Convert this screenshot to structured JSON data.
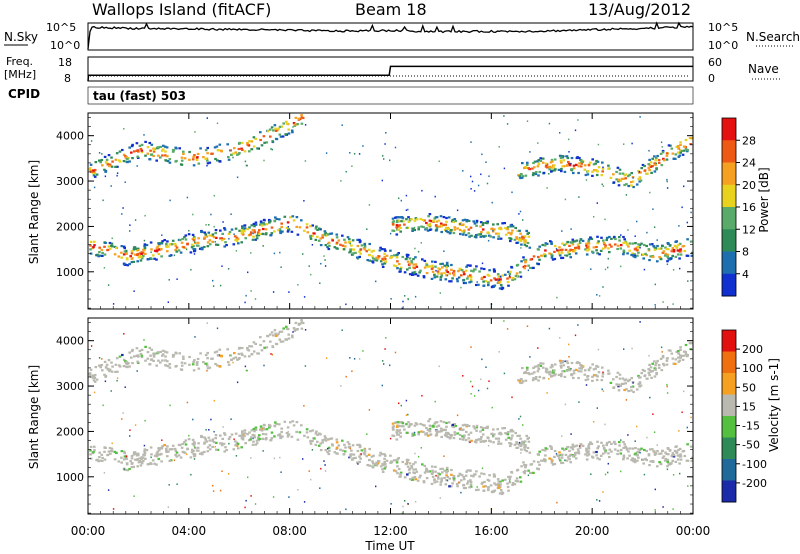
{
  "header": {
    "station": "Wallops Island (fitACF)",
    "beam": "Beam 18",
    "date": "13/Aug/2012"
  },
  "top_panels": {
    "nsky_label": "N.Sky",
    "nsearch_label": "N.Search",
    "noise_ticks": [
      "10^5",
      "10^0"
    ],
    "freq_label": "Freq.",
    "freq_unit": "[MHz]",
    "freq_ticks": [
      "18",
      "8"
    ],
    "nave_label": "Nave",
    "nave_ticks": [
      "60",
      "0"
    ],
    "cpid_label": "CPID",
    "cpid_value": "tau (fast) 503"
  },
  "xaxis": {
    "label": "Time UT",
    "ticks": [
      "00:00",
      "04:00",
      "08:00",
      "12:00",
      "16:00",
      "20:00",
      "00:00"
    ]
  },
  "power_panel": {
    "ylabel": "Slant Range [km]",
    "yticks": [
      "1000",
      "2000",
      "3000",
      "4000"
    ],
    "cbar_label": "Power [dB]",
    "cbar_ticks": [
      "4",
      "8",
      "12",
      "16",
      "20",
      "24",
      "28"
    ]
  },
  "velocity_panel": {
    "ylabel": "Slant Range [km]",
    "yticks": [
      "1000",
      "2000",
      "3000",
      "4000"
    ],
    "cbar_label": "Velocity [m s-1]",
    "cbar_ticks": [
      "200",
      "100",
      "50",
      "15",
      "-15",
      "-50",
      "-100",
      "-200"
    ]
  },
  "chart_data": [
    {
      "type": "heatmap",
      "quantity": "power",
      "units": "dB",
      "x_range_hours": [
        0,
        24
      ],
      "y_range_km": [
        180,
        4500
      ],
      "color_range": [
        0,
        30
      ],
      "colorscale": [
        "#1030d0",
        "#1d6fb0",
        "#2e8b57",
        "#5aaa6a",
        "#e8d21e",
        "#f5a020",
        "#ee5a16",
        "#e51010"
      ],
      "echo_bands": [
        {
          "x": [
            0.0,
            1.5,
            3.0,
            4.5,
            6.0,
            7.0,
            8.0,
            9.5,
            11.0,
            12.0,
            13.5,
            15.0,
            16.5,
            18.0,
            19.5,
            21.0,
            22.5,
            24.0
          ],
          "y": [
            1600,
            1350,
            1500,
            1700,
            1800,
            1950,
            2100,
            1700,
            1450,
            1250,
            1050,
            950,
            800,
            1450,
            1550,
            1600,
            1400,
            1550
          ]
        },
        {
          "x": [
            0.0,
            2.0,
            4.0,
            6.0,
            7.5,
            8.5
          ],
          "y": [
            3200,
            3700,
            3500,
            3700,
            4100,
            4400
          ]
        },
        {
          "x": [
            12.0,
            13.5,
            15.0,
            16.5,
            17.5
          ],
          "y": [
            2000,
            2100,
            1950,
            1900,
            1700
          ]
        },
        {
          "x": [
            17.0,
            18.5,
            20.0,
            21.5,
            23.0,
            24.0
          ],
          "y": [
            3200,
            3400,
            3300,
            3000,
            3600,
            3900
          ]
        }
      ]
    },
    {
      "type": "heatmap",
      "quantity": "velocity",
      "units": "m s-1",
      "x_range_hours": [
        0,
        24
      ],
      "y_range_km": [
        180,
        4500
      ],
      "color_levels": [
        200,
        100,
        50,
        15,
        -15,
        -50,
        -100,
        -200
      ],
      "colorscale": [
        "#1a2aa8",
        "#1f6a9a",
        "#2e8b57",
        "#55c040",
        "#b9b9b0",
        "#f5a020",
        "#f07010",
        "#e31010"
      ],
      "dominant": "ground scatter (grey, near 0 m s-1)"
    },
    {
      "type": "line",
      "quantity": "noise",
      "x_range_hours": [
        0,
        24
      ],
      "ylim_log": [
        0,
        5
      ],
      "series": [
        {
          "name": "N.Sky",
          "x": [
            0,
            0.1,
            2,
            6,
            10,
            12,
            14,
            18,
            22,
            24
          ],
          "y": [
            0.2,
            4.2,
            4.0,
            3.8,
            3.5,
            3.6,
            3.4,
            3.5,
            4.0,
            4.3
          ]
        }
      ]
    },
    {
      "type": "line",
      "quantity": "frequency",
      "units": "MHz",
      "x_range_hours": [
        0,
        24
      ],
      "ylim": [
        8,
        18
      ],
      "series": [
        {
          "name": "Freq.",
          "x": [
            0,
            0.02,
            11.95,
            12.0,
            24
          ],
          "y": [
            8,
            10.4,
            10.4,
            14.1,
            14.1
          ]
        }
      ]
    }
  ]
}
